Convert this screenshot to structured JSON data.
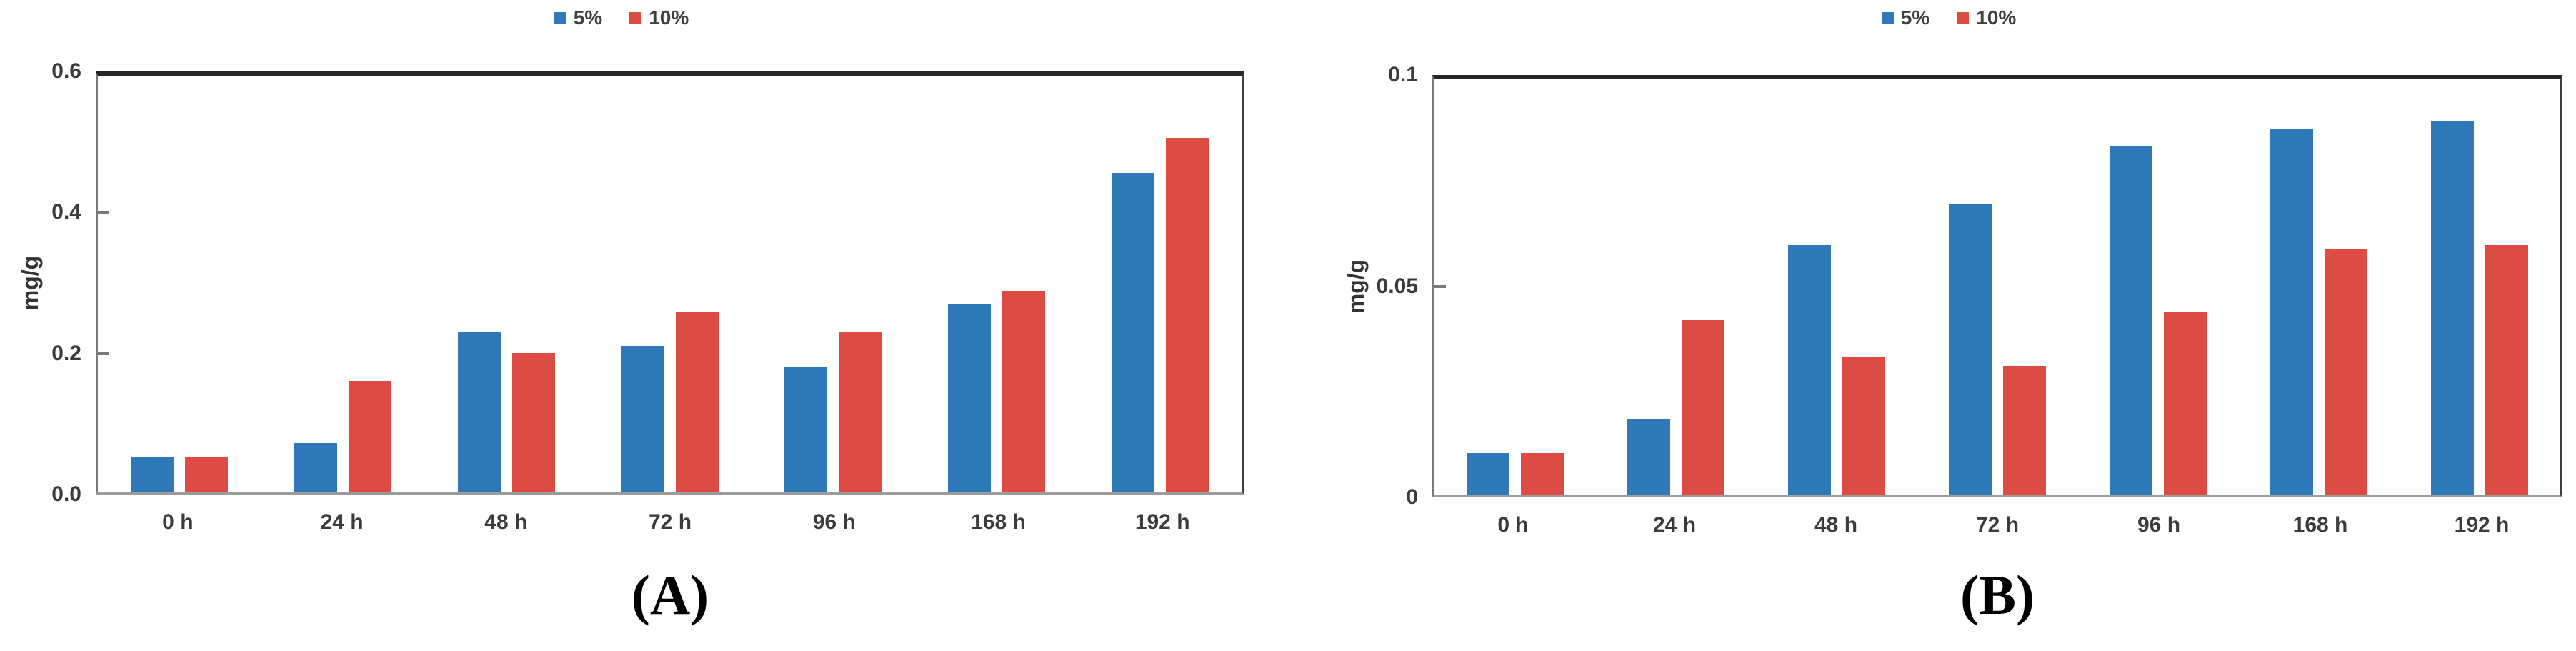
{
  "colors": {
    "series_5pct": "#2e79b8",
    "series_10pct": "#dd4b45",
    "axis_dark": "#262626",
    "axis_gray": "#9c9c9c",
    "text": "#3b3b3b"
  },
  "chart_data": [
    {
      "type": "bar",
      "caption": "(A)",
      "title": "",
      "ylabel": "mg/g",
      "xlabel": "",
      "ylim": [
        0,
        0.6
      ],
      "yticks": [
        0,
        0.2,
        0.4,
        0.6
      ],
      "ytick_labels": [
        "0.0",
        "0.2",
        "0.4",
        "0.6"
      ],
      "grid": false,
      "legend_position": "top-center",
      "categories": [
        "0 h",
        "24 h",
        "48 h",
        "72 h",
        "96 h",
        "168 h",
        "192 h"
      ],
      "series": [
        {
          "name": "5%",
          "color": "#2e79b8",
          "values": [
            0.05,
            0.07,
            0.23,
            0.21,
            0.18,
            0.27,
            0.46
          ]
        },
        {
          "name": "10%",
          "color": "#dd4b45",
          "values": [
            0.05,
            0.16,
            0.2,
            0.26,
            0.23,
            0.29,
            0.51
          ]
        }
      ]
    },
    {
      "type": "bar",
      "caption": "(B)",
      "title": "",
      "ylabel": "mg/g",
      "xlabel": "",
      "ylim": [
        0,
        0.1
      ],
      "yticks": [
        0,
        0.05,
        0.1
      ],
      "ytick_labels": [
        "0",
        "0.05",
        "0.1"
      ],
      "grid": false,
      "legend_position": "top-center",
      "categories": [
        "0 h",
        "24 h",
        "48 h",
        "72 h",
        "96 h",
        "168 h",
        "192 h"
      ],
      "series": [
        {
          "name": "5%",
          "color": "#2e79b8",
          "values": [
            0.01,
            0.018,
            0.06,
            0.07,
            0.084,
            0.088,
            0.09
          ]
        },
        {
          "name": "10%",
          "color": "#dd4b45",
          "values": [
            0.01,
            0.042,
            0.033,
            0.031,
            0.044,
            0.059,
            0.06
          ]
        }
      ]
    }
  ]
}
